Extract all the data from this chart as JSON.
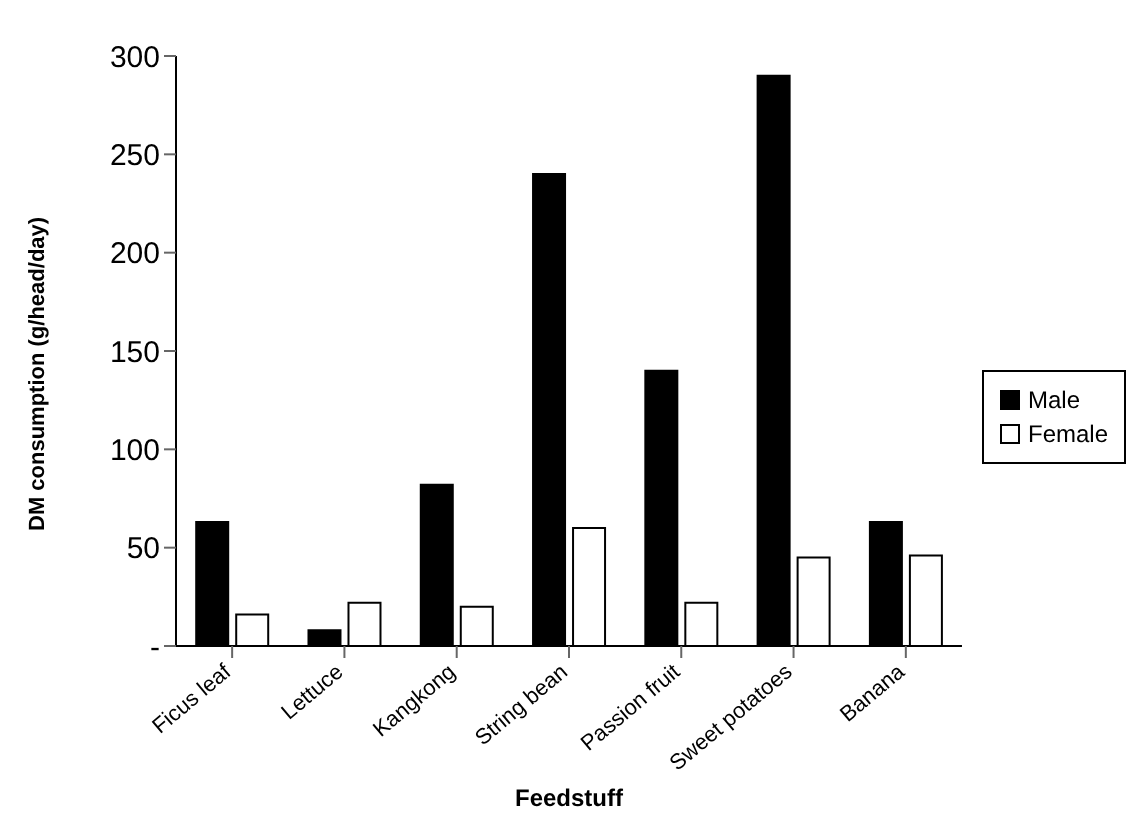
{
  "chart_data": {
    "type": "bar",
    "xlabel": "Feedstuff",
    "ylabel": "DM consumption (g/head/day)",
    "categories": [
      "Ficus leaf",
      "Lettuce",
      "Kangkong",
      "String bean",
      "Passion fruit",
      "Sweet potatoes",
      "Banana"
    ],
    "series": [
      {
        "name": "Male",
        "color": "#000000",
        "values": [
          63,
          8,
          82,
          240,
          140,
          290,
          63
        ]
      },
      {
        "name": "Female",
        "color": "#ffffff",
        "values": [
          16,
          22,
          20,
          60,
          22,
          45,
          46
        ]
      }
    ],
    "ylim": [
      0,
      300
    ],
    "yticks": [
      {
        "value": 0,
        "label": "-"
      },
      50,
      100,
      150,
      200,
      250,
      300
    ],
    "legend": "right"
  }
}
